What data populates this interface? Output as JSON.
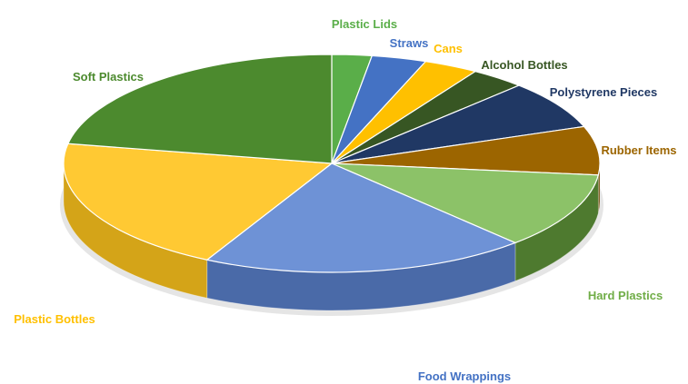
{
  "chart_data": {
    "type": "pie",
    "style": "3d-tilted",
    "title": "",
    "start_angle_deg": 0,
    "direction": "clockwise",
    "slices": [
      {
        "label": "Plastic Lids",
        "value": 2.4,
        "color": "#5AAE49",
        "side_color": "#3F8233",
        "label_color": "#5AAE49"
      },
      {
        "label": "Straws",
        "value": 3.3,
        "color": "#4472C4",
        "side_color": "#2F5597",
        "label_color": "#4472C4"
      },
      {
        "label": "Cans",
        "value": 3.3,
        "color": "#FFC000",
        "side_color": "#C99700",
        "label_color": "#FFC000"
      },
      {
        "label": "Alcohol Bottles",
        "value": 3.3,
        "color": "#375623",
        "side_color": "#243A17",
        "label_color": "#375623"
      },
      {
        "label": "Polystyrene Pieces",
        "value": 7.2,
        "color": "#203864",
        "side_color": "#142544",
        "label_color": "#203864"
      },
      {
        "label": "Rubber Items",
        "value": 7.2,
        "color": "#9C6500",
        "side_color": "#6E4700",
        "label_color": "#9C6500"
      },
      {
        "label": "Hard Plastics",
        "value": 11.3,
        "color": "#8CC268",
        "side_color": "#4E7A2F",
        "label_color": "#70AD47"
      },
      {
        "label": "Food Wrappings",
        "value": 19.7,
        "color": "#6E92D6",
        "side_color": "#4A6AA8",
        "label_color": "#4472C4"
      },
      {
        "label": "Plastic Bottles",
        "value": 20.2,
        "color": "#FFC933",
        "side_color": "#D4A418",
        "label_color": "#FFC000"
      },
      {
        "label": "Soft Plastics",
        "value": 22.1,
        "color": "#4C8A2E",
        "side_color": "#35651F",
        "label_color": "#4C8A2E"
      }
    ]
  }
}
